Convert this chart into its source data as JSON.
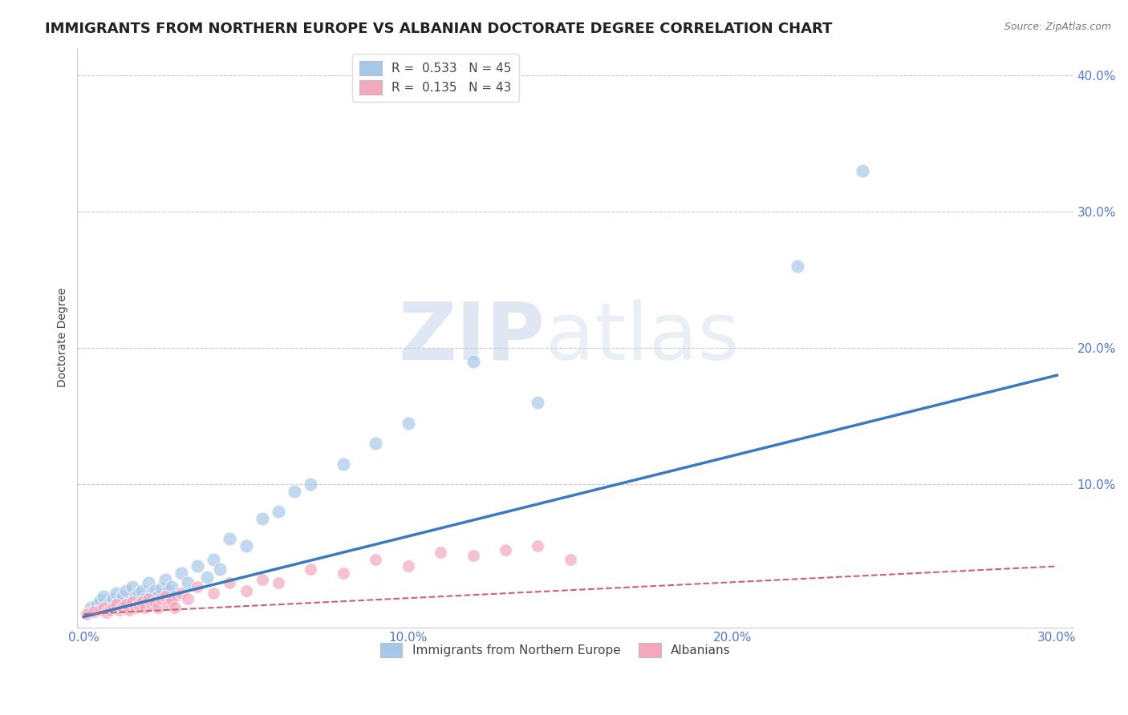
{
  "title": "IMMIGRANTS FROM NORTHERN EUROPE VS ALBANIAN DOCTORATE DEGREE CORRELATION CHART",
  "source": "Source: ZipAtlas.com",
  "ylabel": "Doctorate Degree",
  "xlabel": "",
  "xlim": [
    -0.002,
    0.305
  ],
  "ylim": [
    -0.005,
    0.42
  ],
  "xtick_labels": [
    "0.0%",
    "10.0%",
    "20.0%",
    "30.0%"
  ],
  "xtick_vals": [
    0.0,
    0.1,
    0.2,
    0.3
  ],
  "ytick_labels": [
    "10.0%",
    "20.0%",
    "30.0%",
    "40.0%"
  ],
  "ytick_vals": [
    0.1,
    0.2,
    0.3,
    0.4
  ],
  "blue_R": 0.533,
  "blue_N": 45,
  "pink_R": 0.135,
  "pink_N": 43,
  "blue_color": "#a8c8e8",
  "pink_color": "#f4a8bc",
  "blue_line_color": "#3a7abf",
  "pink_line_color": "#d06070",
  "watermark_zip": "ZIP",
  "watermark_atlas": "atlas",
  "blue_scatter_x": [
    0.002,
    0.004,
    0.005,
    0.006,
    0.007,
    0.008,
    0.009,
    0.01,
    0.011,
    0.012,
    0.013,
    0.014,
    0.015,
    0.016,
    0.017,
    0.018,
    0.019,
    0.02,
    0.021,
    0.022,
    0.023,
    0.024,
    0.025,
    0.026,
    0.027,
    0.028,
    0.03,
    0.032,
    0.035,
    0.038,
    0.04,
    0.042,
    0.045,
    0.05,
    0.055,
    0.06,
    0.065,
    0.07,
    0.08,
    0.09,
    0.1,
    0.12,
    0.14,
    0.22,
    0.24
  ],
  "blue_scatter_y": [
    0.01,
    0.012,
    0.015,
    0.018,
    0.01,
    0.013,
    0.016,
    0.02,
    0.015,
    0.018,
    0.022,
    0.014,
    0.025,
    0.018,
    0.02,
    0.022,
    0.016,
    0.028,
    0.02,
    0.022,
    0.018,
    0.024,
    0.03,
    0.022,
    0.025,
    0.018,
    0.035,
    0.028,
    0.04,
    0.032,
    0.045,
    0.038,
    0.06,
    0.055,
    0.075,
    0.08,
    0.095,
    0.1,
    0.115,
    0.13,
    0.145,
    0.19,
    0.16,
    0.26,
    0.33
  ],
  "pink_scatter_x": [
    0.001,
    0.003,
    0.005,
    0.006,
    0.007,
    0.008,
    0.009,
    0.01,
    0.011,
    0.012,
    0.013,
    0.014,
    0.015,
    0.016,
    0.017,
    0.018,
    0.019,
    0.02,
    0.021,
    0.022,
    0.023,
    0.024,
    0.025,
    0.026,
    0.027,
    0.028,
    0.03,
    0.032,
    0.035,
    0.04,
    0.045,
    0.05,
    0.055,
    0.06,
    0.07,
    0.08,
    0.09,
    0.1,
    0.11,
    0.12,
    0.13,
    0.14,
    0.15
  ],
  "pink_scatter_y": [
    0.005,
    0.007,
    0.008,
    0.01,
    0.006,
    0.008,
    0.01,
    0.012,
    0.008,
    0.01,
    0.012,
    0.008,
    0.014,
    0.01,
    0.012,
    0.014,
    0.01,
    0.016,
    0.012,
    0.014,
    0.01,
    0.016,
    0.018,
    0.012,
    0.015,
    0.01,
    0.02,
    0.016,
    0.025,
    0.02,
    0.028,
    0.022,
    0.03,
    0.028,
    0.038,
    0.035,
    0.045,
    0.04,
    0.05,
    0.048,
    0.052,
    0.055,
    0.045
  ],
  "blue_trend_x": [
    0.0,
    0.3
  ],
  "blue_trend_y": [
    0.003,
    0.18
  ],
  "pink_trend_x": [
    0.0,
    0.3
  ],
  "pink_trend_y": [
    0.005,
    0.04
  ],
  "grid_color": "#c8c8d0",
  "background_color": "#ffffff",
  "title_fontsize": 13,
  "axis_label_fontsize": 10,
  "tick_fontsize": 11,
  "tick_color": "#5577cc",
  "legend_fontsize": 11
}
